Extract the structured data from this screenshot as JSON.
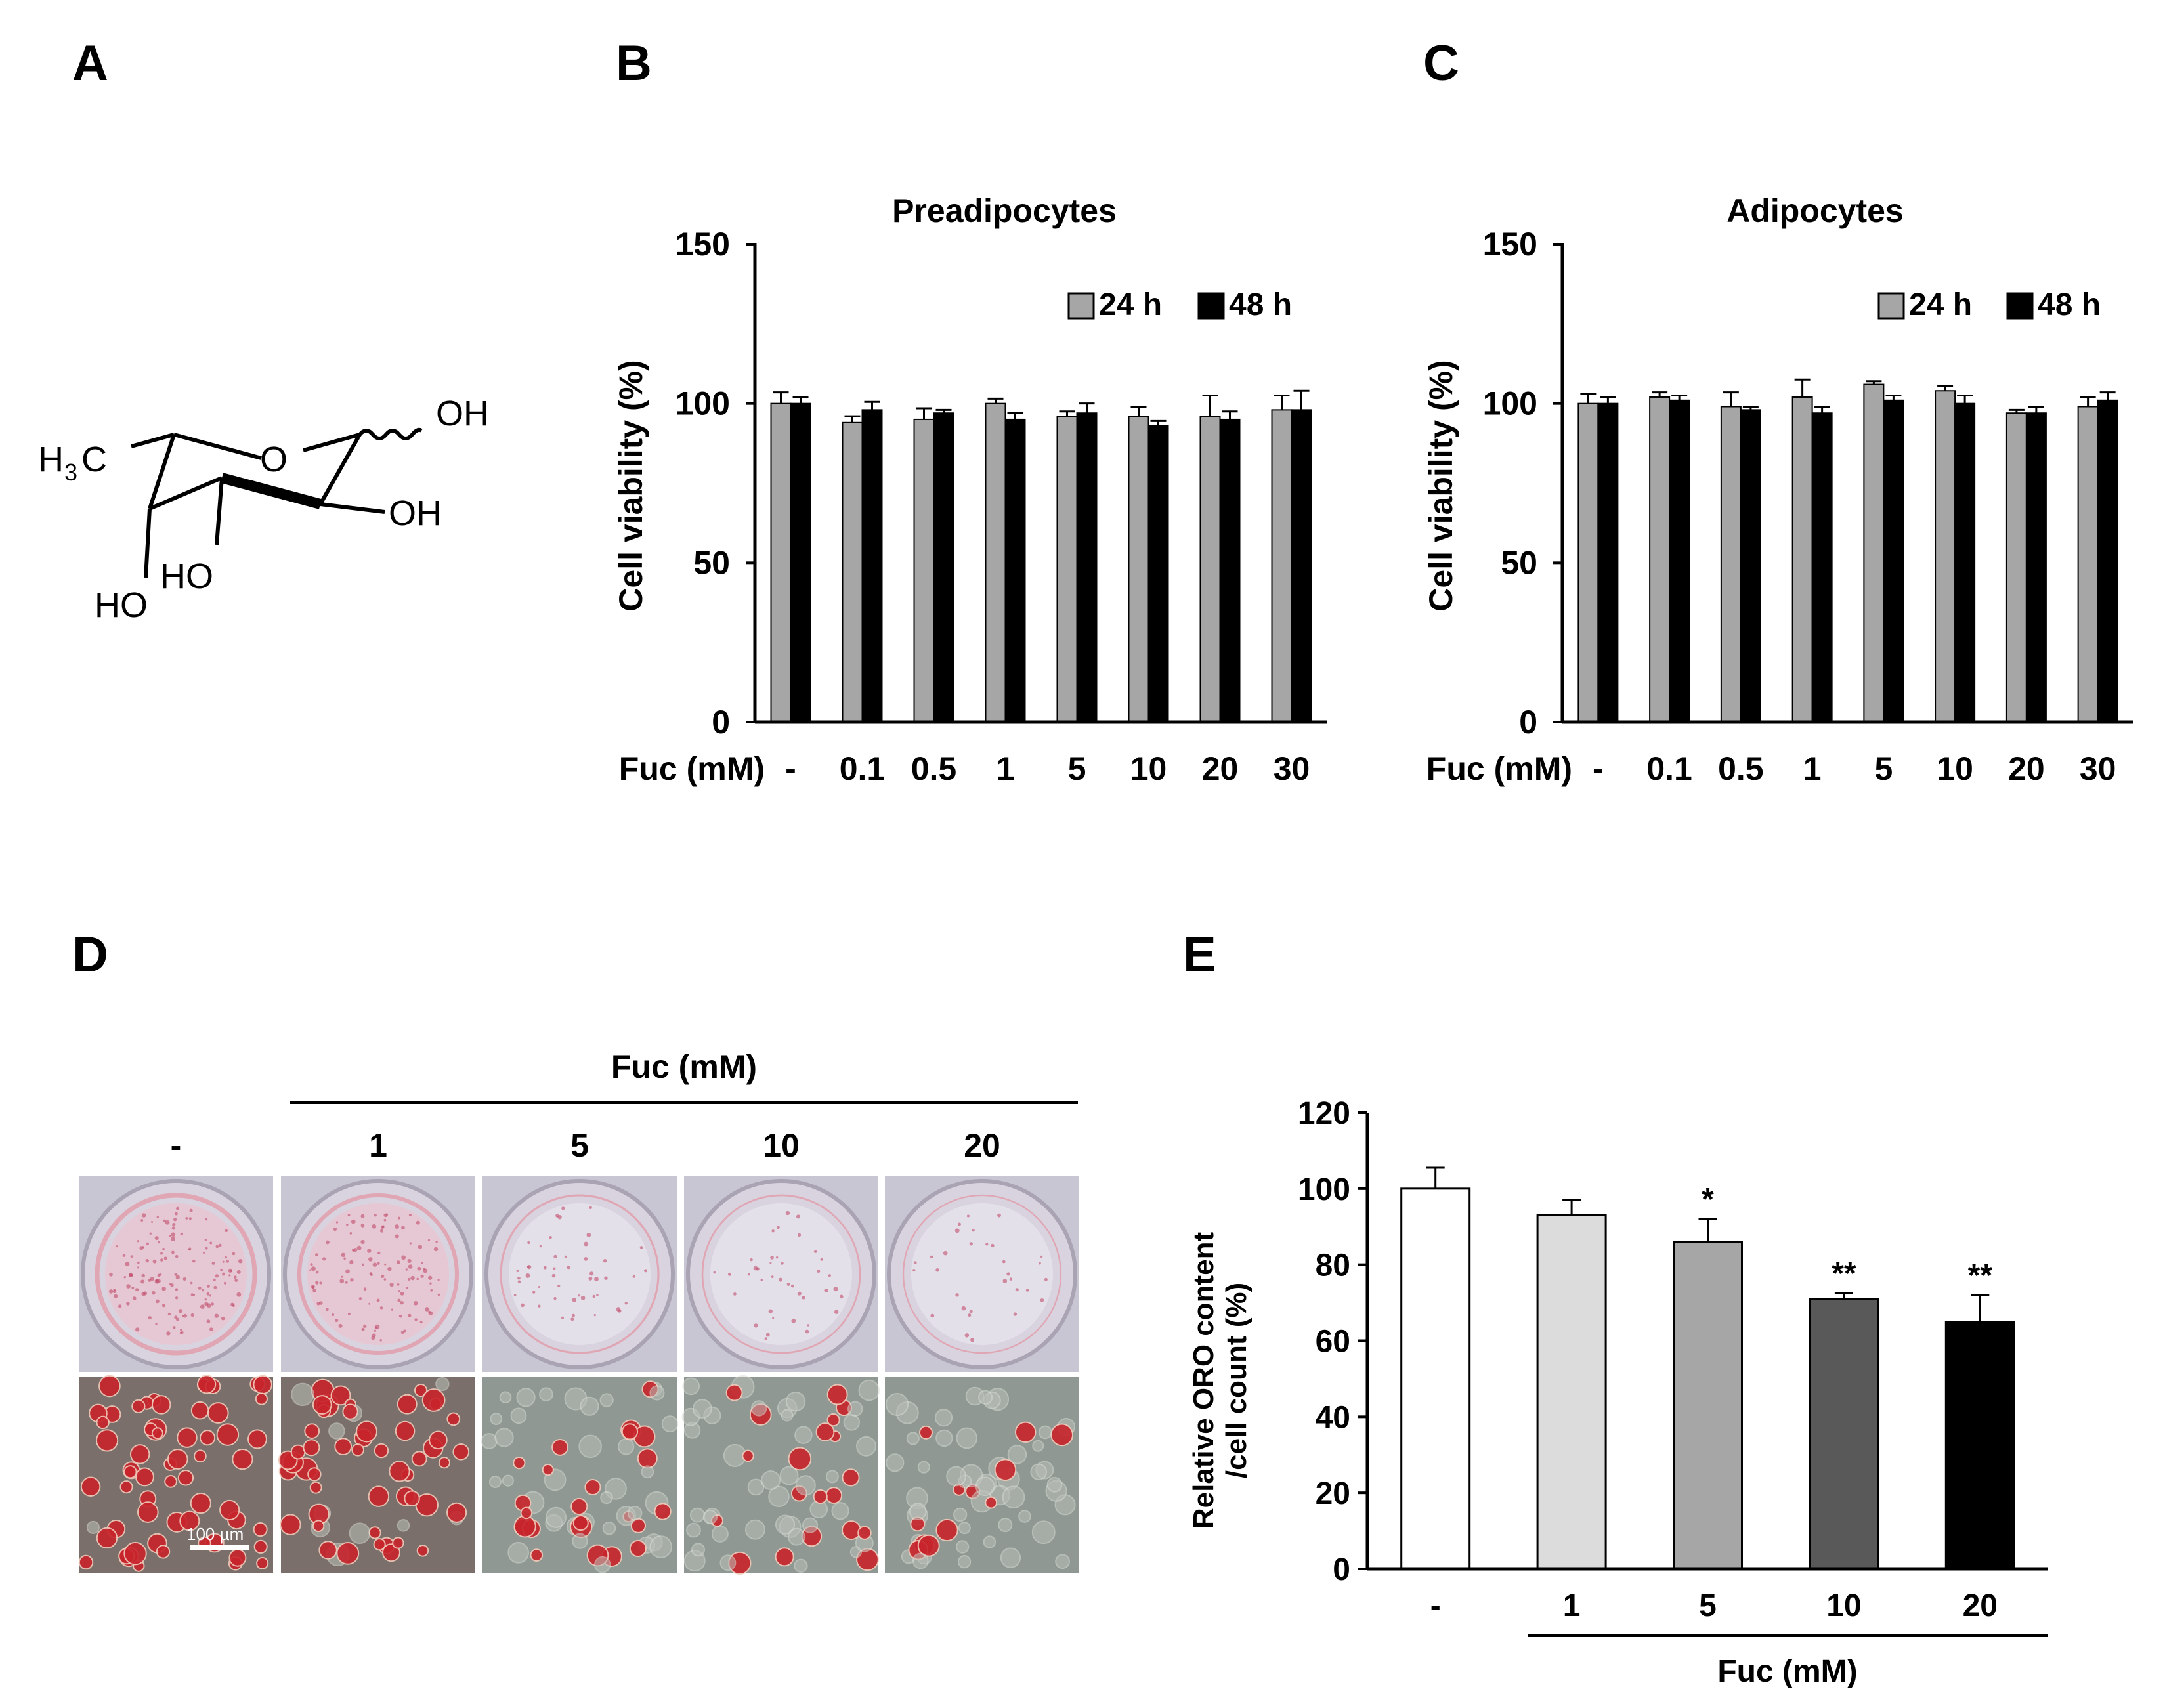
{
  "panels": {
    "a": "A",
    "b": "B",
    "c": "C",
    "d": "D",
    "e": "E"
  },
  "structure": {
    "methyl_main": "H",
    "methyl_sub": "3",
    "methyl_end": "C",
    "ring_oxygen": "O",
    "oh_anomeric": "OH",
    "oh_c2": "OH",
    "oh_c3": "HO",
    "oh_c4": "HO"
  },
  "colors": {
    "series_24h": "#a6a6a6",
    "series_48h": "#000000",
    "oro_bars": [
      "#ffffff",
      "#dcdcdc",
      "#a6a6a6",
      "#595959",
      "#000000"
    ]
  },
  "panel_d": {
    "group_label": "Fuc (mM)",
    "conditions": [
      "-",
      "1",
      "5",
      "10",
      "20"
    ],
    "scale_bar_label": "100 µm",
    "stain_levels": [
      1.0,
      0.85,
      0.35,
      0.28,
      0.22
    ]
  },
  "chart_data": [
    {
      "id": "B",
      "type": "bar",
      "title": "Preadipocytes",
      "xlabel": "Fuc (mM)",
      "ylabel": "Cell viability (%)",
      "categories": [
        "-",
        "0.1",
        "0.5",
        "1",
        "5",
        "10",
        "20",
        "30"
      ],
      "series": [
        {
          "name": "24 h",
          "values": [
            100,
            94,
            95,
            100,
            96,
            96,
            96,
            98
          ],
          "errors": [
            3.5,
            2,
            3.5,
            1.5,
            1.5,
            3,
            6.5,
            4.5
          ]
        },
        {
          "name": "48 h",
          "values": [
            100,
            98,
            97,
            95,
            97,
            93,
            95,
            98
          ],
          "errors": [
            2,
            2.5,
            1,
            2,
            3,
            1.5,
            2.5,
            6
          ]
        }
      ],
      "ylim": [
        0,
        150
      ],
      "yticks": [
        "0",
        "50",
        "100",
        "150"
      ],
      "legend_position": "top-right",
      "grid": false
    },
    {
      "id": "C",
      "type": "bar",
      "title": "Adipocytes",
      "xlabel": "Fuc (mM)",
      "ylabel": "Cell viability (%)",
      "categories": [
        "-",
        "0.1",
        "0.5",
        "1",
        "5",
        "10",
        "20",
        "30"
      ],
      "series": [
        {
          "name": "24 h",
          "values": [
            100,
            102,
            99,
            102,
            106,
            104,
            97,
            99
          ],
          "errors": [
            3,
            1.5,
            4.5,
            5.5,
            1,
            1.5,
            1,
            3
          ]
        },
        {
          "name": "48 h",
          "values": [
            100,
            101,
            98,
            97,
            101,
            100,
            97,
            101
          ],
          "errors": [
            2,
            1.5,
            1,
            2,
            1.5,
            2.5,
            2,
            2.5
          ]
        }
      ],
      "ylim": [
        0,
        150
      ],
      "yticks": [
        "0",
        "50",
        "100",
        "150"
      ],
      "legend_position": "top-right",
      "grid": false
    },
    {
      "id": "E",
      "type": "bar",
      "title": "",
      "xlabel": "Fuc (mM)",
      "ylabel_line1": "Relative ORO content",
      "ylabel_line2": "/cell count (%)",
      "categories": [
        "-",
        "1",
        "5",
        "10",
        "20"
      ],
      "values": [
        100,
        93,
        86,
        71,
        65
      ],
      "errors": [
        5.5,
        4,
        6,
        1.5,
        7
      ],
      "significance": [
        "",
        "",
        "*",
        "**",
        "**"
      ],
      "ylim": [
        0,
        120
      ],
      "yticks": [
        "0",
        "20",
        "40",
        "60",
        "80",
        "100",
        "120"
      ],
      "grid": false
    }
  ]
}
